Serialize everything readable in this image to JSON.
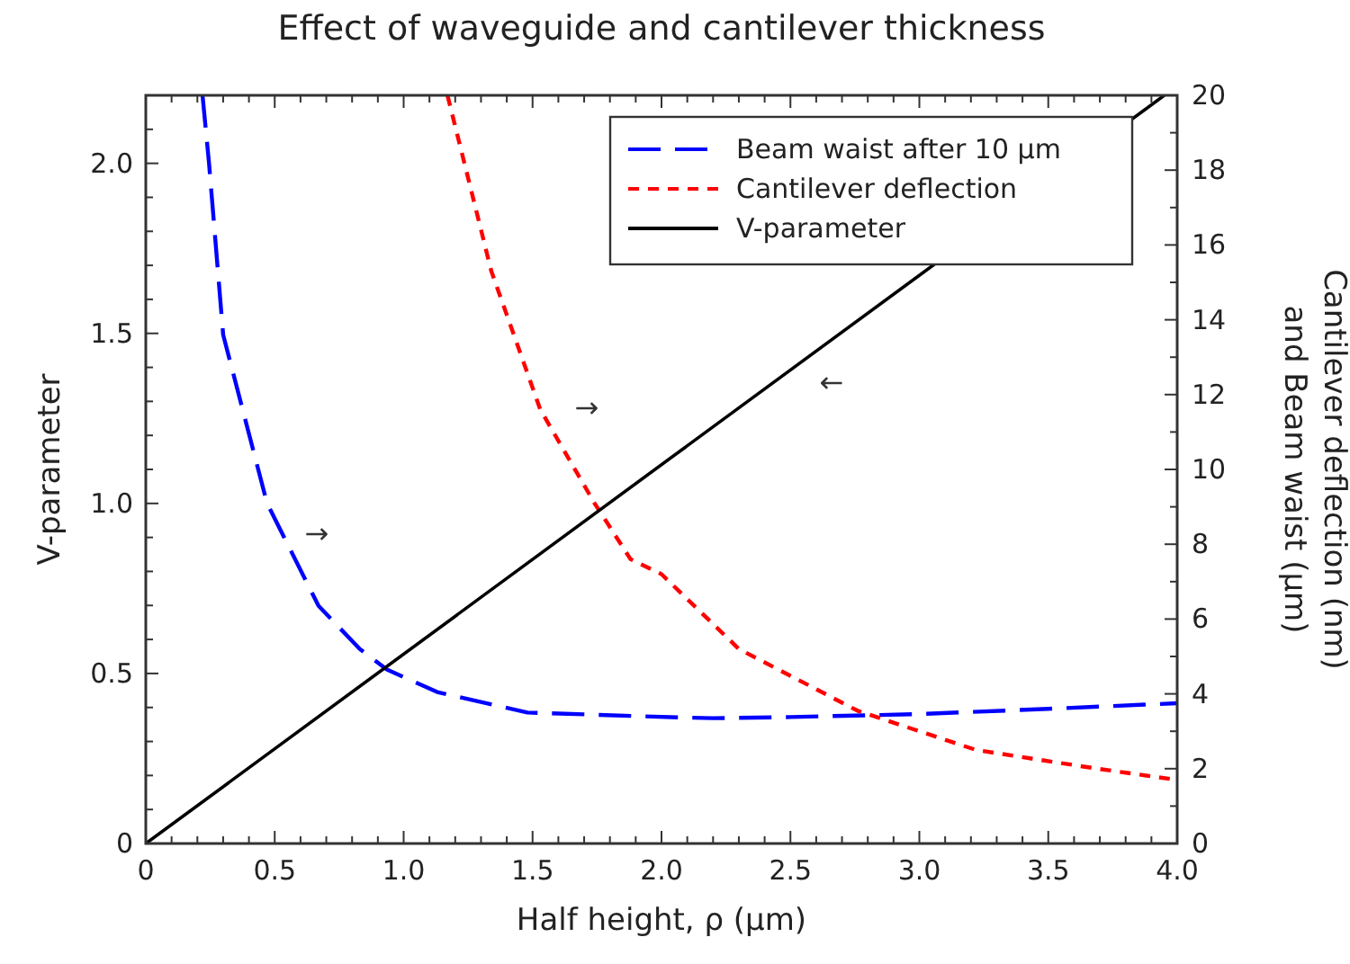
{
  "chart_data": {
    "type": "line",
    "title": "Effect of waveguide and cantilever thickness",
    "xlabel": "Half height, ρ (μm)",
    "ylabel": "V-parameter",
    "y2label": "Cantilever deflection (nm)\nand Beam waist (μm)",
    "xlim": [
      0,
      4
    ],
    "ylim": [
      0,
      2.2
    ],
    "y2lim": [
      0,
      20
    ],
    "xticks": [
      0,
      {
        "value": 0.1,
        "label": null
      },
      {
        "value": 0.2,
        "label": null
      },
      {
        "value": 0.3,
        "label": null
      },
      {
        "value": 0.4,
        "label": null
      },
      0.5,
      {
        "value": 0.6,
        "label": null
      },
      {
        "value": 0.7,
        "label": null
      },
      {
        "value": 0.8,
        "label": null
      },
      {
        "value": 0.9,
        "label": null
      },
      {
        "value": 1,
        "label": "1.0"
      },
      {
        "value": 1.1,
        "label": null
      },
      {
        "value": 1.2,
        "label": null
      },
      {
        "value": 1.3,
        "label": null
      },
      {
        "value": 1.4,
        "label": null
      },
      1.5,
      {
        "value": 1.6,
        "label": null
      },
      {
        "value": 1.7,
        "label": null
      },
      {
        "value": 1.8,
        "label": null
      },
      {
        "value": 1.9,
        "label": null
      },
      {
        "value": 2,
        "label": "2.0"
      },
      {
        "value": 2.1,
        "label": null
      },
      {
        "value": 2.2,
        "label": null
      },
      {
        "value": 2.3,
        "label": null
      },
      {
        "value": 2.4,
        "label": null
      },
      2.5,
      {
        "value": 2.6,
        "label": null
      },
      {
        "value": 2.7,
        "label": null
      },
      {
        "value": 2.8,
        "label": null
      },
      {
        "value": 2.9,
        "label": null
      },
      {
        "value": 3,
        "label": "3.0"
      },
      {
        "value": 3.1,
        "label": null
      },
      {
        "value": 3.2,
        "label": null
      },
      {
        "value": 3.3,
        "label": null
      },
      {
        "value": 3.4,
        "label": null
      },
      3.5,
      {
        "value": 3.6,
        "label": null
      },
      {
        "value": 3.7,
        "label": null
      },
      {
        "value": 3.8,
        "label": null
      },
      {
        "value": 3.9,
        "label": null
      },
      {
        "value": 4,
        "label": "4.0"
      }
    ],
    "yticks": [
      0,
      {
        "value": 0.1,
        "label": null
      },
      {
        "value": 0.2,
        "label": null
      },
      {
        "value": 0.3,
        "label": null
      },
      {
        "value": 0.4,
        "label": null
      },
      0.5,
      {
        "value": 0.6,
        "label": null
      },
      {
        "value": 0.7,
        "label": null
      },
      {
        "value": 0.8,
        "label": null
      },
      {
        "value": 0.9,
        "label": null
      },
      {
        "value": 1,
        "label": "1.0"
      },
      {
        "value": 1.1,
        "label": null
      },
      {
        "value": 1.2,
        "label": null
      },
      {
        "value": 1.3,
        "label": null
      },
      {
        "value": 1.4,
        "label": null
      },
      1.5,
      {
        "value": 1.6,
        "label": null
      },
      {
        "value": 1.7,
        "label": null
      },
      {
        "value": 1.8,
        "label": null
      },
      {
        "value": 1.9,
        "label": null
      },
      {
        "value": 2,
        "label": "2.0"
      },
      {
        "value": 2.1,
        "label": null
      }
    ],
    "y2ticks": [
      0,
      {
        "value": 1,
        "label": null
      },
      2,
      {
        "value": 3,
        "label": null
      },
      4,
      {
        "value": 5,
        "label": null
      },
      6,
      {
        "value": 7,
        "label": null
      },
      8,
      {
        "value": 9,
        "label": null
      },
      10,
      {
        "value": 11,
        "label": null
      },
      12,
      {
        "value": 13,
        "label": null
      },
      14,
      {
        "value": 15,
        "label": null
      },
      16,
      {
        "value": 17,
        "label": null
      },
      18,
      {
        "value": 19,
        "label": null
      },
      20
    ],
    "legend": "top right",
    "grid": false,
    "marker": "none",
    "series": [
      {
        "name": "Beam waist after 10 μm",
        "color": "#0000ff",
        "line_style": "dashed",
        "axis": "y2",
        "x": [
          0.22,
          0.245,
          0.3,
          0.47,
          0.55,
          0.67,
          0.83,
          0.935,
          1.13,
          1.48,
          2.07,
          2.2,
          2.5,
          3.0,
          3.5,
          4.0
        ],
        "values": [
          20,
          18.2,
          13.6,
          9.1,
          8.0,
          6.35,
          5.2,
          4.65,
          4.05,
          3.5,
          3.37,
          3.35,
          3.38,
          3.46,
          3.6,
          3.75
        ]
      },
      {
        "name": "Cantilever deflection",
        "color": "#ff0000",
        "line_style": "dotted",
        "axis": "y2",
        "x": [
          1.17,
          1.34,
          1.53,
          1.74,
          1.88,
          2.0,
          2.3,
          2.76,
          3.22,
          3.69,
          4.0
        ],
        "values": [
          20,
          15.3,
          11.6,
          9.1,
          7.6,
          7.2,
          5.2,
          3.55,
          2.5,
          2.0,
          1.7
        ]
      },
      {
        "name": "V-parameter",
        "color": "#000000",
        "line_style": "solid",
        "x": [
          0,
          3.95
        ],
        "values": [
          0,
          2.2
        ]
      }
    ],
    "annotations": [
      "→",
      "→",
      "←"
    ]
  }
}
